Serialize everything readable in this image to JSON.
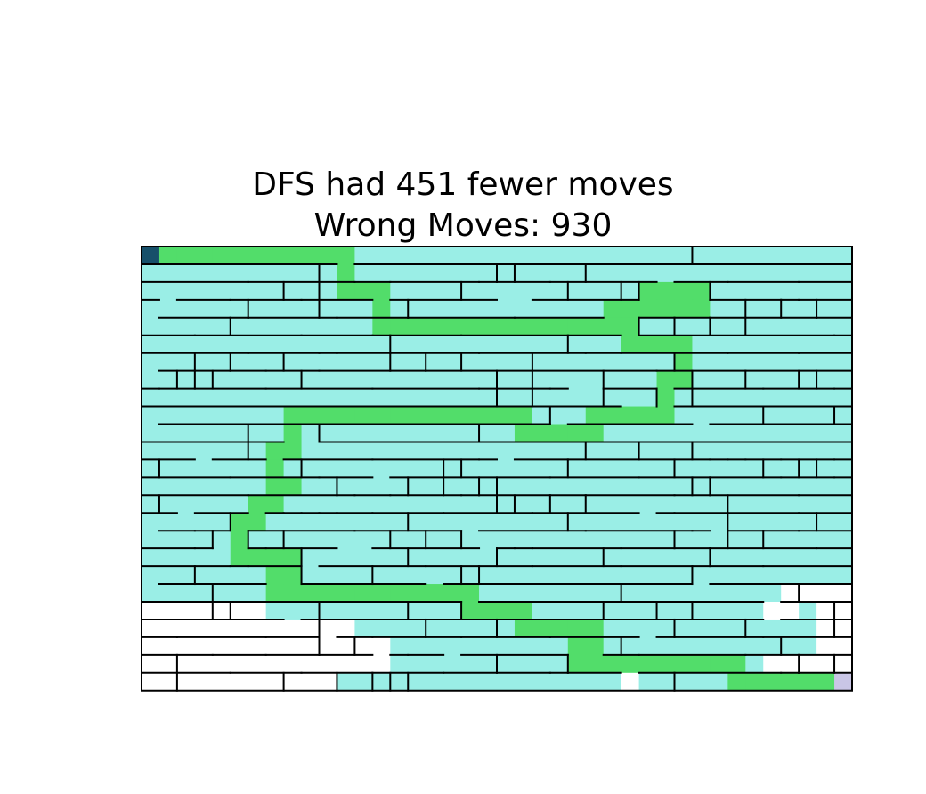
{
  "title": {
    "line1": "DFS had 451 fewer moves",
    "line2": "Wrong Moves: 930"
  },
  "maze": {
    "cols": 40,
    "rows": 25,
    "colors": {
      "unvisited": "#ffffff",
      "explored": "#9aeee6",
      "solution_path": "#52dd6a",
      "start": "#17506a",
      "goal": "#c9c6e6",
      "wall": "#000000"
    },
    "start": [
      0,
      0
    ],
    "goal": [
      39,
      24
    ],
    "solution_path": [
      [
        0,
        0
      ],
      [
        1,
        0
      ],
      [
        2,
        0
      ],
      [
        3,
        0
      ],
      [
        4,
        0
      ],
      [
        5,
        0
      ],
      [
        6,
        0
      ],
      [
        7,
        0
      ],
      [
        8,
        0
      ],
      [
        9,
        0
      ],
      [
        10,
        0
      ],
      [
        11,
        0
      ],
      [
        11,
        1
      ],
      [
        11,
        2
      ],
      [
        12,
        2
      ],
      [
        13,
        2
      ],
      [
        13,
        3
      ],
      [
        13,
        4
      ],
      [
        14,
        4
      ],
      [
        15,
        4
      ],
      [
        16,
        4
      ],
      [
        17,
        4
      ],
      [
        18,
        4
      ],
      [
        19,
        4
      ],
      [
        20,
        4
      ],
      [
        21,
        4
      ],
      [
        22,
        4
      ],
      [
        23,
        4
      ],
      [
        24,
        4
      ],
      [
        25,
        4
      ],
      [
        26,
        4
      ],
      [
        26,
        3
      ],
      [
        27,
        3
      ],
      [
        28,
        3
      ],
      [
        28,
        2
      ],
      [
        29,
        2
      ],
      [
        30,
        2
      ],
      [
        31,
        2
      ],
      [
        31,
        3
      ],
      [
        30,
        3
      ],
      [
        29,
        3
      ],
      [
        27,
        4
      ],
      [
        27,
        5
      ],
      [
        28,
        5
      ],
      [
        29,
        5
      ],
      [
        30,
        5
      ],
      [
        30,
        6
      ],
      [
        30,
        7
      ],
      [
        29,
        7
      ],
      [
        29,
        8
      ],
      [
        29,
        9
      ],
      [
        28,
        9
      ],
      [
        27,
        9
      ],
      [
        26,
        9
      ],
      [
        25,
        9
      ],
      [
        25,
        10
      ],
      [
        24,
        10
      ],
      [
        23,
        10
      ],
      [
        22,
        10
      ],
      [
        21,
        10
      ],
      [
        21,
        9
      ],
      [
        20,
        9
      ],
      [
        19,
        9
      ],
      [
        18,
        9
      ],
      [
        17,
        9
      ],
      [
        16,
        9
      ],
      [
        15,
        9
      ],
      [
        14,
        9
      ],
      [
        13,
        9
      ],
      [
        12,
        9
      ],
      [
        11,
        9
      ],
      [
        10,
        9
      ],
      [
        9,
        9
      ],
      [
        8,
        9
      ],
      [
        8,
        10
      ],
      [
        8,
        11
      ],
      [
        7,
        11
      ],
      [
        7,
        12
      ],
      [
        7,
        13
      ],
      [
        8,
        13
      ],
      [
        7,
        14
      ],
      [
        6,
        14
      ],
      [
        6,
        15
      ],
      [
        5,
        15
      ],
      [
        5,
        16
      ],
      [
        5,
        17
      ],
      [
        6,
        17
      ],
      [
        7,
        17
      ],
      [
        8,
        17
      ],
      [
        8,
        18
      ],
      [
        7,
        18
      ],
      [
        7,
        19
      ],
      [
        8,
        19
      ],
      [
        9,
        19
      ],
      [
        10,
        19
      ],
      [
        11,
        19
      ],
      [
        12,
        19
      ],
      [
        13,
        19
      ],
      [
        14,
        19
      ],
      [
        15,
        19
      ],
      [
        16,
        19
      ],
      [
        17,
        19
      ],
      [
        18,
        19
      ],
      [
        18,
        20
      ],
      [
        19,
        20
      ],
      [
        20,
        20
      ],
      [
        21,
        20
      ],
      [
        21,
        21
      ],
      [
        22,
        21
      ],
      [
        23,
        21
      ],
      [
        24,
        21
      ],
      [
        25,
        21
      ],
      [
        25,
        22
      ],
      [
        24,
        22
      ],
      [
        24,
        23
      ],
      [
        25,
        23
      ],
      [
        26,
        23
      ],
      [
        27,
        23
      ],
      [
        28,
        23
      ],
      [
        29,
        23
      ],
      [
        30,
        23
      ],
      [
        31,
        23
      ],
      [
        32,
        23
      ],
      [
        33,
        23
      ],
      [
        33,
        24
      ],
      [
        34,
        24
      ],
      [
        35,
        24
      ],
      [
        36,
        24
      ],
      [
        37,
        24
      ],
      [
        38,
        24
      ],
      [
        39,
        24
      ]
    ],
    "unexplored_cells": [
      [
        0,
        20
      ],
      [
        1,
        20
      ],
      [
        2,
        20
      ],
      [
        3,
        20
      ],
      [
        4,
        20
      ],
      [
        5,
        20
      ],
      [
        6,
        20
      ],
      [
        0,
        21
      ],
      [
        1,
        21
      ],
      [
        2,
        21
      ],
      [
        3,
        21
      ],
      [
        4,
        21
      ],
      [
        5,
        21
      ],
      [
        6,
        21
      ],
      [
        7,
        21
      ],
      [
        8,
        21
      ],
      [
        9,
        21
      ],
      [
        10,
        21
      ],
      [
        11,
        21
      ],
      [
        0,
        22
      ],
      [
        1,
        22
      ],
      [
        2,
        22
      ],
      [
        3,
        22
      ],
      [
        4,
        22
      ],
      [
        5,
        22
      ],
      [
        6,
        22
      ],
      [
        7,
        22
      ],
      [
        8,
        22
      ],
      [
        9,
        22
      ],
      [
        10,
        22
      ],
      [
        11,
        22
      ],
      [
        12,
        22
      ],
      [
        13,
        22
      ],
      [
        0,
        23
      ],
      [
        1,
        23
      ],
      [
        2,
        23
      ],
      [
        3,
        23
      ],
      [
        4,
        23
      ],
      [
        5,
        23
      ],
      [
        6,
        23
      ],
      [
        7,
        23
      ],
      [
        8,
        23
      ],
      [
        9,
        23
      ],
      [
        10,
        23
      ],
      [
        11,
        23
      ],
      [
        12,
        23
      ],
      [
        13,
        23
      ],
      [
        0,
        24
      ],
      [
        1,
        24
      ],
      [
        2,
        24
      ],
      [
        3,
        24
      ],
      [
        4,
        24
      ],
      [
        5,
        24
      ],
      [
        6,
        24
      ],
      [
        7,
        24
      ],
      [
        8,
        24
      ],
      [
        9,
        24
      ],
      [
        10,
        24
      ],
      [
        27,
        24
      ],
      [
        36,
        19
      ],
      [
        37,
        19
      ],
      [
        38,
        19
      ],
      [
        39,
        19
      ],
      [
        35,
        20
      ],
      [
        36,
        20
      ],
      [
        38,
        20
      ],
      [
        39,
        20
      ],
      [
        38,
        21
      ],
      [
        39,
        21
      ],
      [
        38,
        22
      ],
      [
        39,
        22
      ],
      [
        35,
        23
      ],
      [
        36,
        23
      ],
      [
        37,
        23
      ],
      [
        38,
        23
      ],
      [
        39,
        23
      ]
    ]
  }
}
